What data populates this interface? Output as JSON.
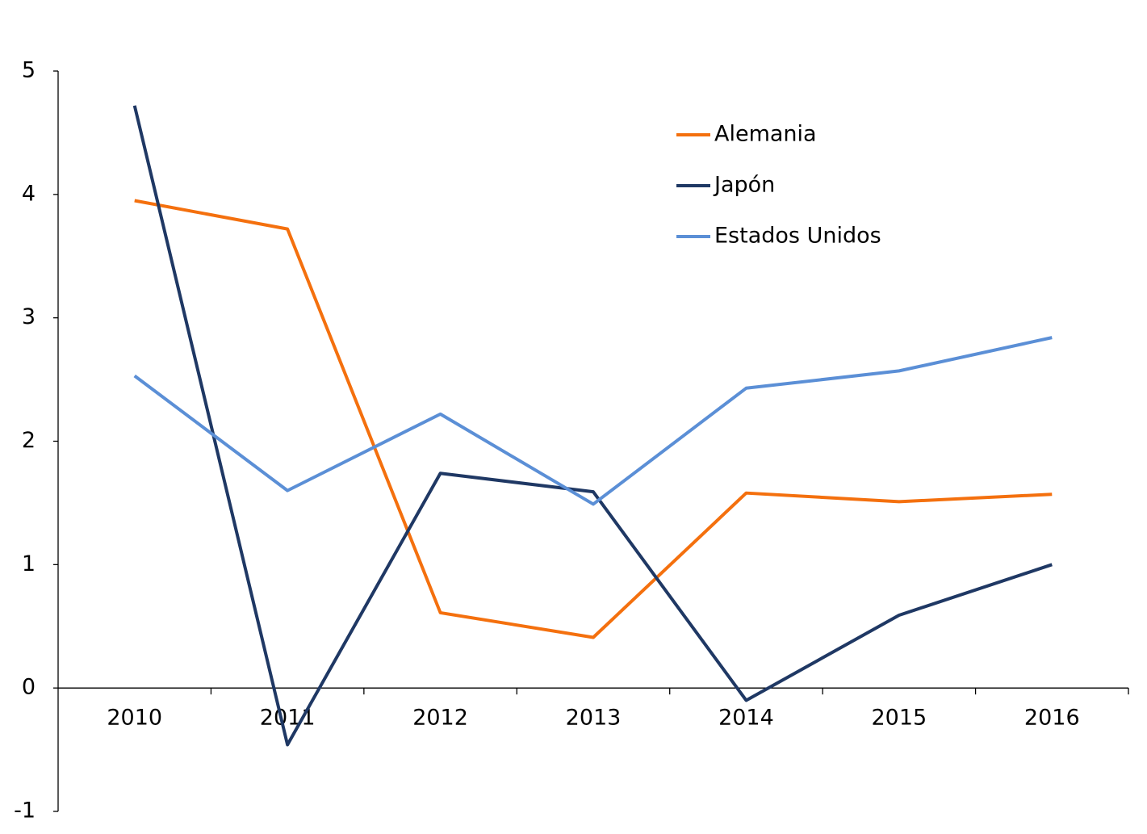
{
  "chart_data": {
    "type": "line",
    "categories": [
      "2010",
      "2011",
      "2012",
      "2013",
      "2014",
      "2015",
      "2016"
    ],
    "series": [
      {
        "name": "Alemania",
        "color": "#f4700e",
        "values": [
          3.95,
          3.72,
          0.61,
          0.41,
          1.58,
          1.51,
          1.57
        ]
      },
      {
        "name": "Japón",
        "color": "#1f3864",
        "values": [
          4.72,
          -0.46,
          1.74,
          1.59,
          -0.1,
          0.59,
          1.0
        ]
      },
      {
        "name": "Estados Unidos",
        "color": "#5b8fd6",
        "values": [
          2.53,
          1.6,
          2.22,
          1.49,
          2.43,
          2.57,
          2.84
        ]
      }
    ],
    "ylim": [
      -1,
      5
    ],
    "yticks": [
      -1,
      0,
      1,
      2,
      3,
      4,
      5
    ],
    "grid": false,
    "legend": "top-right"
  }
}
